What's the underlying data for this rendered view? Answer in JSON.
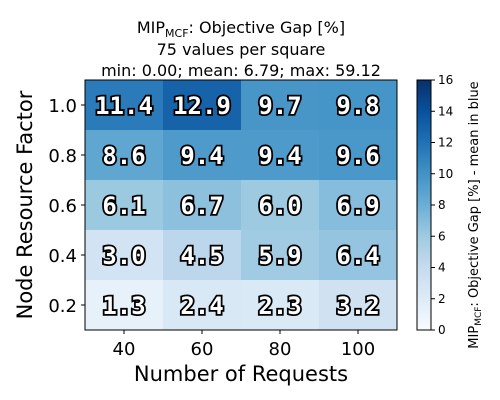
{
  "chart_data": {
    "type": "heatmap",
    "title": {
      "prefix": "MIP",
      "subscript": "MCF",
      "suffix": ": Objective Gap [%]",
      "line2": "75 values per square",
      "line3": "min: 0.00; mean: 6.79; max: 59.12"
    },
    "xlabel": "Number of Requests",
    "ylabel": "Node Resource Factor",
    "x_categories": [
      "40",
      "60",
      "80",
      "100"
    ],
    "y_categories": [
      "1.0",
      "0.8",
      "0.6",
      "0.4",
      "0.2"
    ],
    "values": [
      [
        11.4,
        12.9,
        9.7,
        9.8
      ],
      [
        8.6,
        9.4,
        9.4,
        9.6
      ],
      [
        6.1,
        6.7,
        6.0,
        6.9
      ],
      [
        3.0,
        4.5,
        5.9,
        6.4
      ],
      [
        1.3,
        2.4,
        2.3,
        3.2
      ]
    ],
    "colorbar": {
      "min": 0,
      "max": 16,
      "ticks": [
        0,
        2,
        4,
        6,
        8,
        10,
        12,
        14,
        16
      ],
      "label_prefix": "MIP",
      "label_subscript": "MCF",
      "label_suffix": ": Objective Gap [%] - mean in blue",
      "colormap": "Blues",
      "colormap_stops": [
        "#f7fbff",
        "#deebf7",
        "#c6dbef",
        "#9ecae1",
        "#6baed6",
        "#4292c6",
        "#2171b5",
        "#08519c",
        "#08306b"
      ]
    }
  }
}
